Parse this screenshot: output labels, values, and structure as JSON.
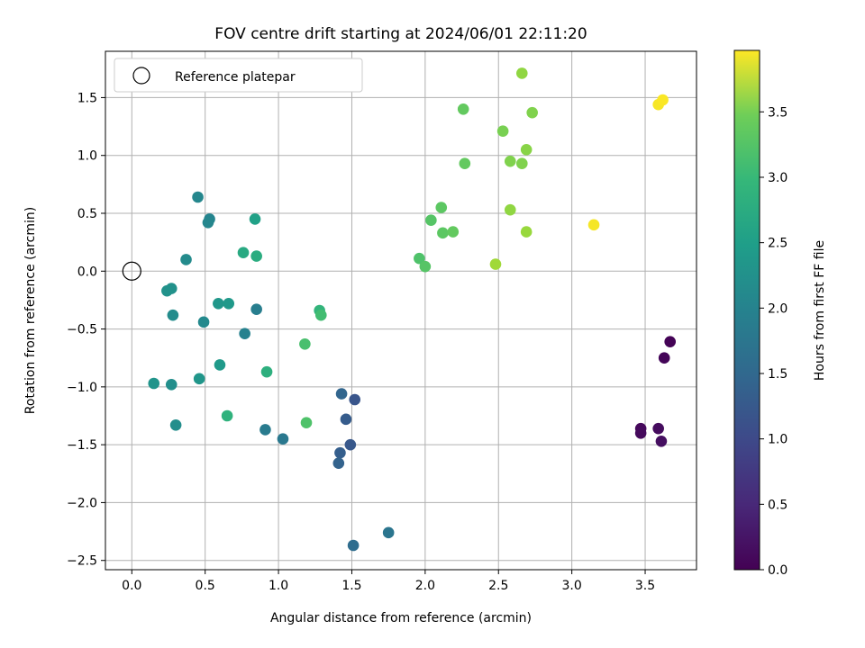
{
  "chart_data": {
    "type": "scatter",
    "title": "FOV centre drift starting at 2024/06/01 22:11:20",
    "xlabel": "Angular distance from reference (arcmin)",
    "ylabel": "Rotation from reference (arcmin)",
    "xlim": [
      -0.18,
      3.85
    ],
    "ylim": [
      -2.58,
      1.9
    ],
    "xticks": [
      0.0,
      0.5,
      1.0,
      1.5,
      2.0,
      2.5,
      3.0,
      3.5
    ],
    "xtick_labels": [
      "0.0",
      "0.5",
      "1.0",
      "1.5",
      "2.0",
      "2.5",
      "3.0",
      "3.5"
    ],
    "yticks": [
      -2.5,
      -2.0,
      -1.5,
      -1.0,
      -0.5,
      0.0,
      0.5,
      1.0,
      1.5
    ],
    "ytick_labels": [
      "−2.5",
      "−2.0",
      "−1.5",
      "−1.0",
      "−0.5",
      "0.0",
      "0.5",
      "1.0",
      "1.5"
    ],
    "grid": true,
    "legend": {
      "position": "top-left",
      "entries": [
        {
          "label": "Reference platepar",
          "marker": "open-circle"
        }
      ]
    },
    "reference_point": {
      "x": 0.0,
      "y": 0.0
    },
    "colorbar": {
      "label": "Hours from first FF file",
      "colormap": "viridis",
      "range": [
        0.0,
        3.97
      ],
      "ticks": [
        0.0,
        0.5,
        1.0,
        1.5,
        2.0,
        2.5,
        3.0,
        3.5
      ],
      "tick_labels": [
        "0.0",
        "0.5",
        "1.0",
        "1.5",
        "2.0",
        "2.5",
        "3.0",
        "3.5"
      ]
    },
    "points": [
      {
        "x": 3.67,
        "y": -0.61,
        "c": 0.02
      },
      {
        "x": 3.63,
        "y": -0.75,
        "c": 0.05
      },
      {
        "x": 3.47,
        "y": -1.36,
        "c": 0.08
      },
      {
        "x": 3.47,
        "y": -1.4,
        "c": 0.1
      },
      {
        "x": 3.59,
        "y": -1.36,
        "c": 0.12
      },
      {
        "x": 3.61,
        "y": -1.47,
        "c": 0.15
      },
      {
        "x": 1.52,
        "y": -1.11,
        "c": 1.05
      },
      {
        "x": 1.49,
        "y": -1.5,
        "c": 1.1
      },
      {
        "x": 1.46,
        "y": -1.28,
        "c": 1.15
      },
      {
        "x": 1.42,
        "y": -1.57,
        "c": 1.2
      },
      {
        "x": 1.41,
        "y": -1.66,
        "c": 1.25
      },
      {
        "x": 1.43,
        "y": -1.06,
        "c": 1.3
      },
      {
        "x": 1.51,
        "y": -2.37,
        "c": 1.4
      },
      {
        "x": 1.75,
        "y": -2.26,
        "c": 1.55
      },
      {
        "x": 1.03,
        "y": -1.45,
        "c": 1.6
      },
      {
        "x": 0.91,
        "y": -1.37,
        "c": 1.65
      },
      {
        "x": 0.85,
        "y": -0.33,
        "c": 1.7
      },
      {
        "x": 0.77,
        "y": -0.54,
        "c": 1.75
      },
      {
        "x": 0.53,
        "y": 0.45,
        "c": 1.8
      },
      {
        "x": 0.52,
        "y": 0.42,
        "c": 1.82
      },
      {
        "x": 0.45,
        "y": 0.64,
        "c": 1.85
      },
      {
        "x": 0.49,
        "y": -0.44,
        "c": 1.87
      },
      {
        "x": 0.37,
        "y": 0.1,
        "c": 1.9
      },
      {
        "x": 0.28,
        "y": -0.38,
        "c": 1.92
      },
      {
        "x": 0.3,
        "y": -1.33,
        "c": 1.95
      },
      {
        "x": 0.27,
        "y": -0.98,
        "c": 1.97
      },
      {
        "x": 0.27,
        "y": -0.15,
        "c": 2.0
      },
      {
        "x": 0.24,
        "y": -0.17,
        "c": 2.02
      },
      {
        "x": 0.15,
        "y": -0.97,
        "c": 2.05
      },
      {
        "x": 0.46,
        "y": -0.93,
        "c": 2.08
      },
      {
        "x": 0.59,
        "y": -0.28,
        "c": 2.1
      },
      {
        "x": 0.66,
        "y": -0.28,
        "c": 2.12
      },
      {
        "x": 0.6,
        "y": -0.81,
        "c": 2.15
      },
      {
        "x": 0.84,
        "y": 0.45,
        "c": 2.25
      },
      {
        "x": 0.76,
        "y": 0.16,
        "c": 2.4
      },
      {
        "x": 0.85,
        "y": 0.13,
        "c": 2.45
      },
      {
        "x": 0.92,
        "y": -0.87,
        "c": 2.5
      },
      {
        "x": 0.65,
        "y": -1.25,
        "c": 2.55
      },
      {
        "x": 1.28,
        "y": -0.34,
        "c": 2.6
      },
      {
        "x": 1.29,
        "y": -0.38,
        "c": 2.75
      },
      {
        "x": 1.18,
        "y": -0.63,
        "c": 2.8
      },
      {
        "x": 1.19,
        "y": -1.31,
        "c": 2.85
      },
      {
        "x": 1.96,
        "y": 0.11,
        "c": 2.85
      },
      {
        "x": 2.0,
        "y": 0.04,
        "c": 2.9
      },
      {
        "x": 2.04,
        "y": 0.44,
        "c": 2.9
      },
      {
        "x": 2.11,
        "y": 0.55,
        "c": 2.95
      },
      {
        "x": 2.12,
        "y": 0.33,
        "c": 2.95
      },
      {
        "x": 2.19,
        "y": 0.34,
        "c": 3.0
      },
      {
        "x": 2.27,
        "y": 0.93,
        "c": 3.0
      },
      {
        "x": 2.26,
        "y": 1.4,
        "c": 3.0
      },
      {
        "x": 2.53,
        "y": 1.21,
        "c": 3.15
      },
      {
        "x": 2.58,
        "y": 0.95,
        "c": 3.2
      },
      {
        "x": 2.58,
        "y": 0.53,
        "c": 3.3
      },
      {
        "x": 2.66,
        "y": 0.93,
        "c": 3.2
      },
      {
        "x": 2.69,
        "y": 1.05,
        "c": 3.25
      },
      {
        "x": 2.73,
        "y": 1.37,
        "c": 3.2
      },
      {
        "x": 2.66,
        "y": 1.71,
        "c": 3.3
      },
      {
        "x": 2.69,
        "y": 0.34,
        "c": 3.35
      },
      {
        "x": 2.48,
        "y": 0.06,
        "c": 3.4
      },
      {
        "x": 3.15,
        "y": 0.4,
        "c": 3.92
      },
      {
        "x": 3.59,
        "y": 1.44,
        "c": 3.93
      },
      {
        "x": 3.62,
        "y": 1.48,
        "c": 3.95
      }
    ]
  }
}
